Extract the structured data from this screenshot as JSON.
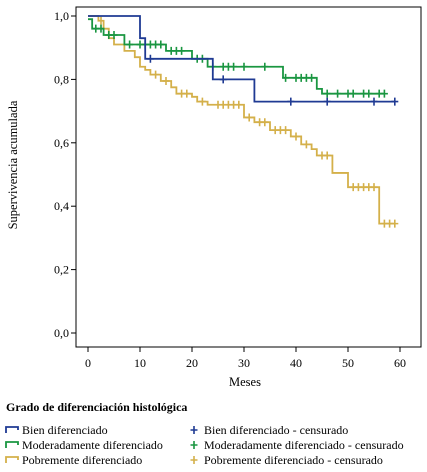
{
  "chart_data": {
    "type": "line",
    "subtype": "kaplan-meier",
    "title": "",
    "xlabel": "Meses",
    "ylabel": "Supervivencia acumulada",
    "xlim": [
      0,
      60
    ],
    "ylim": [
      0,
      1.0
    ],
    "xticks": [
      "0",
      "10",
      "20",
      "30",
      "40",
      "50",
      "60"
    ],
    "yticks": [
      "0,0",
      "0,2",
      "0,4",
      "0,6",
      "0,8",
      "1,0"
    ],
    "xtick_values": [
      0,
      10,
      20,
      30,
      40,
      50,
      60
    ],
    "ytick_values": [
      0,
      0.2,
      0.4,
      0.6,
      0.8,
      1.0
    ],
    "grid": false,
    "legend": {
      "title": "Grado de diferenciación histológica",
      "placement": "bottom",
      "entries": [
        {
          "label": "Bien diferenciado",
          "series": 0,
          "kind": "step"
        },
        {
          "label": "Bien diferenciado - censurado",
          "series": 0,
          "kind": "censor"
        },
        {
          "label": "Moderadamente diferenciado",
          "series": 1,
          "kind": "step"
        },
        {
          "label": "Moderadamente diferenciado - censurado",
          "series": 1,
          "kind": "censor"
        },
        {
          "label": "Pobremente diferenciado",
          "series": 2,
          "kind": "step"
        },
        {
          "label": "Pobremente diferenciado - censurado",
          "series": 2,
          "kind": "censor"
        }
      ]
    },
    "series": [
      {
        "name": "Bien diferenciado",
        "color": "#1f3a93",
        "steps": [
          [
            0,
            1.0
          ],
          [
            10,
            0.93
          ],
          [
            11,
            0.865
          ],
          [
            24,
            0.8
          ],
          [
            32,
            0.73
          ],
          [
            59,
            0.73
          ]
        ],
        "censored": [
          [
            12,
            0.865
          ],
          [
            26,
            0.8
          ],
          [
            39,
            0.73
          ],
          [
            46,
            0.73
          ],
          [
            55,
            0.73
          ],
          [
            59,
            0.73
          ]
        ]
      },
      {
        "name": "Moderadamente diferenciado",
        "color": "#1a9641",
        "steps": [
          [
            0,
            0.99
          ],
          [
            0.8,
            0.96
          ],
          [
            3,
            0.94
          ],
          [
            7,
            0.91
          ],
          [
            15,
            0.89
          ],
          [
            20,
            0.865
          ],
          [
            23,
            0.84
          ],
          [
            37.5,
            0.805
          ],
          [
            44,
            0.77
          ],
          [
            45,
            0.755
          ],
          [
            57,
            0.755
          ]
        ],
        "censored": [
          [
            1.5,
            0.96
          ],
          [
            2.5,
            0.96
          ],
          [
            4,
            0.94
          ],
          [
            5,
            0.94
          ],
          [
            8,
            0.91
          ],
          [
            10,
            0.91
          ],
          [
            11,
            0.91
          ],
          [
            12,
            0.91
          ],
          [
            13,
            0.91
          ],
          [
            14,
            0.91
          ],
          [
            16,
            0.89
          ],
          [
            17,
            0.89
          ],
          [
            18,
            0.89
          ],
          [
            21,
            0.865
          ],
          [
            22,
            0.865
          ],
          [
            24,
            0.84
          ],
          [
            26,
            0.84
          ],
          [
            27,
            0.84
          ],
          [
            28,
            0.84
          ],
          [
            30,
            0.84
          ],
          [
            34,
            0.84
          ],
          [
            38,
            0.805
          ],
          [
            40,
            0.805
          ],
          [
            41,
            0.805
          ],
          [
            42,
            0.805
          ],
          [
            43,
            0.805
          ],
          [
            46,
            0.755
          ],
          [
            48,
            0.755
          ],
          [
            50,
            0.755
          ],
          [
            51,
            0.755
          ],
          [
            53,
            0.755
          ],
          [
            54,
            0.755
          ],
          [
            56,
            0.755
          ],
          [
            57,
            0.755
          ]
        ]
      },
      {
        "name": "Pobremente diferenciado",
        "color": "#d4b04a",
        "steps": [
          [
            0,
            1.0
          ],
          [
            2,
            0.985
          ],
          [
            3,
            0.96
          ],
          [
            4,
            0.93
          ],
          [
            5,
            0.91
          ],
          [
            7,
            0.89
          ],
          [
            9,
            0.87
          ],
          [
            10,
            0.84
          ],
          [
            11,
            0.83
          ],
          [
            12,
            0.815
          ],
          [
            14,
            0.795
          ],
          [
            16,
            0.775
          ],
          [
            17,
            0.755
          ],
          [
            20,
            0.745
          ],
          [
            21,
            0.73
          ],
          [
            23,
            0.72
          ],
          [
            30,
            0.68
          ],
          [
            32,
            0.665
          ],
          [
            35,
            0.64
          ],
          [
            39,
            0.62
          ],
          [
            41,
            0.595
          ],
          [
            43,
            0.58
          ],
          [
            44,
            0.56
          ],
          [
            47,
            0.505
          ],
          [
            50,
            0.46
          ],
          [
            56,
            0.345
          ],
          [
            59,
            0.345
          ]
        ],
        "censored": [
          [
            2.5,
            0.985
          ],
          [
            13,
            0.815
          ],
          [
            15,
            0.795
          ],
          [
            18,
            0.755
          ],
          [
            19,
            0.755
          ],
          [
            22,
            0.73
          ],
          [
            25,
            0.72
          ],
          [
            26,
            0.72
          ],
          [
            27,
            0.72
          ],
          [
            28,
            0.72
          ],
          [
            29,
            0.72
          ],
          [
            31,
            0.68
          ],
          [
            33,
            0.665
          ],
          [
            34,
            0.665
          ],
          [
            36,
            0.64
          ],
          [
            37,
            0.64
          ],
          [
            38,
            0.64
          ],
          [
            40,
            0.62
          ],
          [
            42,
            0.595
          ],
          [
            45,
            0.56
          ],
          [
            46,
            0.56
          ],
          [
            51,
            0.46
          ],
          [
            52,
            0.46
          ],
          [
            53,
            0.46
          ],
          [
            54,
            0.46
          ],
          [
            55,
            0.46
          ],
          [
            57,
            0.345
          ],
          [
            58,
            0.345
          ],
          [
            59,
            0.345
          ]
        ]
      }
    ]
  }
}
